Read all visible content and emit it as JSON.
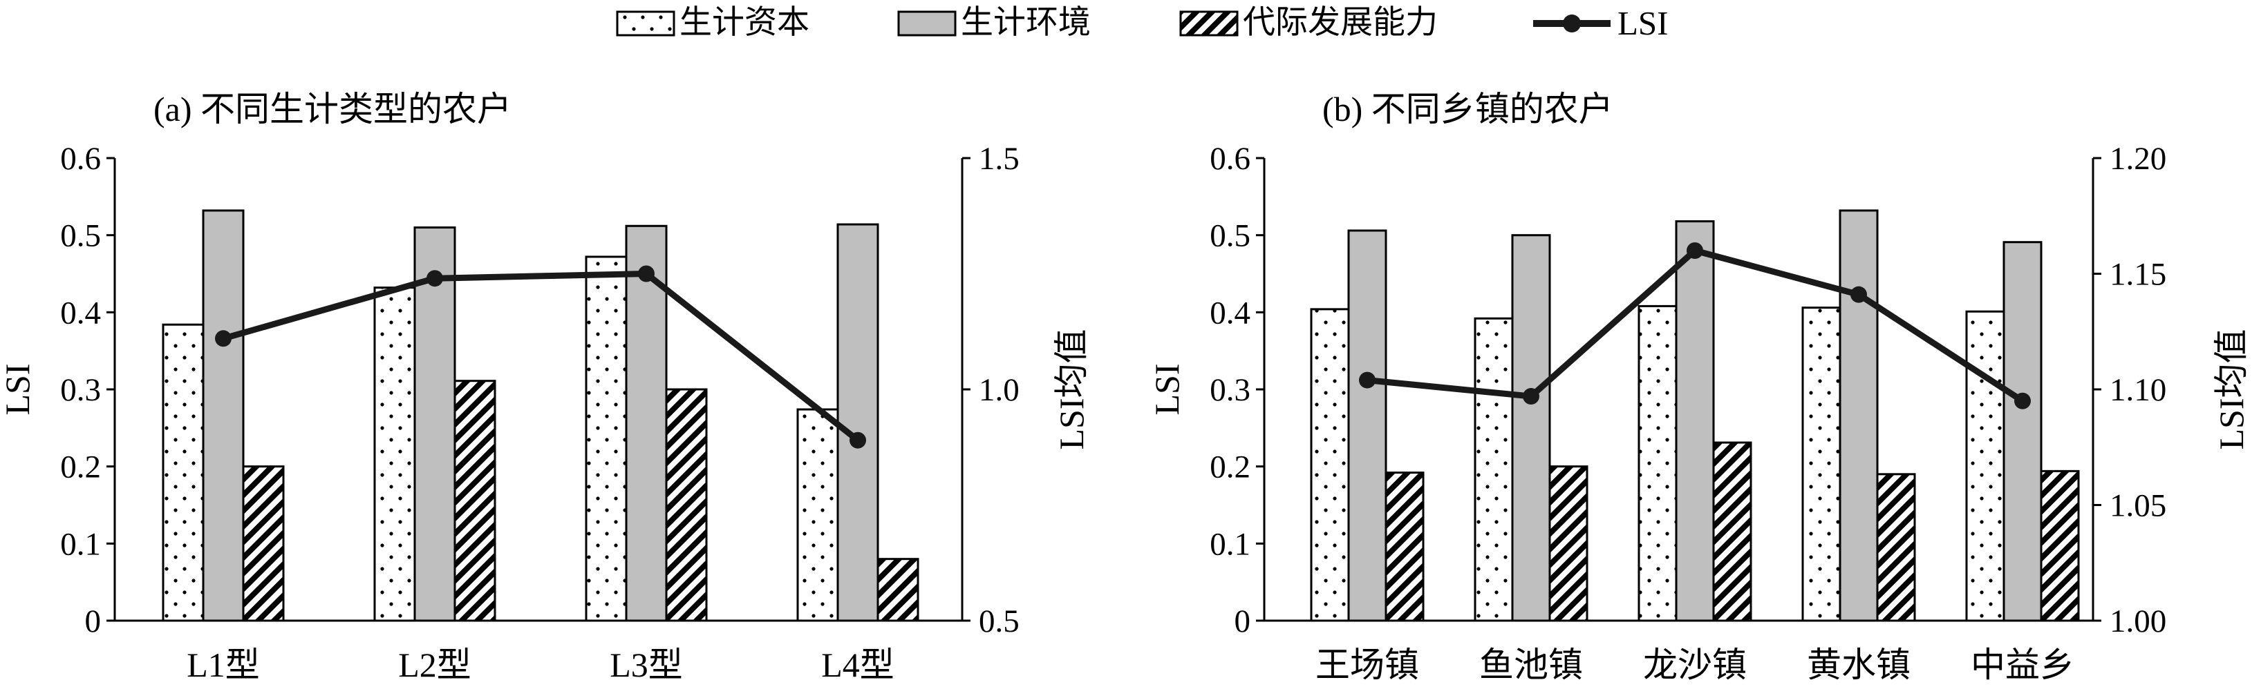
{
  "legend": {
    "items": [
      {
        "label": "生计资本",
        "style": "dots"
      },
      {
        "label": "生计环境",
        "style": "gray"
      },
      {
        "label": "代际发展能力",
        "style": "hatch"
      },
      {
        "label": "LSI",
        "style": "line"
      }
    ]
  },
  "colors": {
    "bar_gray": "#bfbfbf",
    "line": "#1a1a1a",
    "axis": "#000000"
  },
  "chart_data": [
    {
      "type": "bar",
      "title": "(a) 不同生计类型的农户",
      "ylabel": "LSI",
      "y2label": "LSI均值",
      "ylim": [
        0,
        0.6
      ],
      "yticks": [
        0,
        0.1,
        0.2,
        0.3,
        0.4,
        0.5,
        0.6
      ],
      "ytick_labels": [
        "0",
        "0.1",
        "0.2",
        "0.3",
        "0.4",
        "0.5",
        "0.6"
      ],
      "y2lim": [
        0.5,
        1.5
      ],
      "y2ticks": [
        0.5,
        1.0,
        1.5
      ],
      "y2tick_labels": [
        "0.5",
        "1.0",
        "1.5"
      ],
      "categories": [
        "L1型",
        "L2型",
        "L3型",
        "L4型"
      ],
      "series": [
        {
          "name": "生计资本",
          "values": [
            0.384,
            0.432,
            0.472,
            0.274
          ]
        },
        {
          "name": "生计环境",
          "values": [
            0.532,
            0.51,
            0.512,
            0.514
          ]
        },
        {
          "name": "代际发展能力",
          "values": [
            0.2,
            0.311,
            0.3,
            0.08
          ]
        }
      ],
      "line": {
        "name": "LSI",
        "axis": "right",
        "values": [
          1.11,
          1.24,
          1.25,
          0.89
        ]
      }
    },
    {
      "type": "bar",
      "title": "(b) 不同乡镇的农户",
      "ylabel": "LSI",
      "y2label": "LSI均值",
      "ylim": [
        0,
        0.6
      ],
      "yticks": [
        0,
        0.1,
        0.2,
        0.3,
        0.4,
        0.5,
        0.6
      ],
      "ytick_labels": [
        "0",
        "0.1",
        "0.2",
        "0.3",
        "0.4",
        "0.5",
        "0.6"
      ],
      "y2lim": [
        1.0,
        1.2
      ],
      "y2ticks": [
        1.0,
        1.05,
        1.1,
        1.15,
        1.2
      ],
      "y2tick_labels": [
        "1.00",
        "1.05",
        "1.10",
        "1.15",
        "1.20"
      ],
      "categories": [
        "王场镇",
        "鱼池镇",
        "龙沙镇",
        "黄水镇",
        "中益乡"
      ],
      "series": [
        {
          "name": "生计资本",
          "values": [
            0.404,
            0.392,
            0.408,
            0.406,
            0.401
          ]
        },
        {
          "name": "生计环境",
          "values": [
            0.506,
            0.5,
            0.518,
            0.532,
            0.491
          ]
        },
        {
          "name": "代际发展能力",
          "values": [
            0.192,
            0.2,
            0.231,
            0.19,
            0.194
          ]
        }
      ],
      "line": {
        "name": "LSI",
        "axis": "right",
        "values": [
          1.104,
          1.097,
          1.16,
          1.141,
          1.095
        ]
      }
    }
  ]
}
